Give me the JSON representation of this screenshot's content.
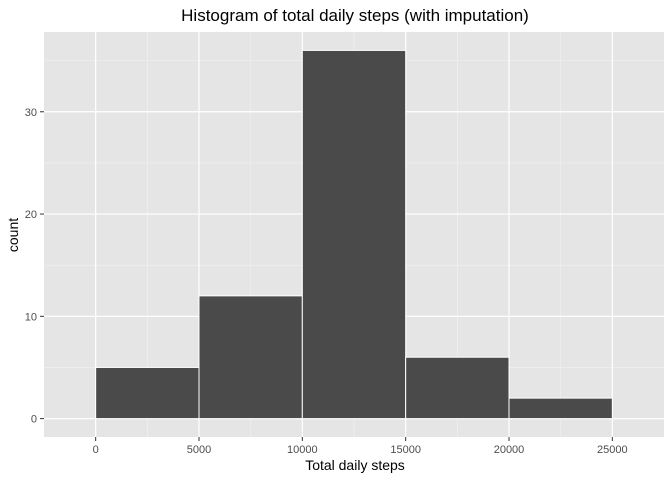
{
  "chart_data": {
    "type": "bar",
    "title": "Histogram of total daily steps (with imputation)",
    "xlabel": "Total daily steps",
    "ylabel": "count",
    "bins": [
      {
        "start": 0,
        "end": 5000,
        "count": 5
      },
      {
        "start": 5000,
        "end": 10000,
        "count": 12
      },
      {
        "start": 10000,
        "end": 15000,
        "count": 36
      },
      {
        "start": 15000,
        "end": 20000,
        "count": 6
      },
      {
        "start": 20000,
        "end": 25000,
        "count": 2
      }
    ],
    "xlim": [
      -2500,
      27500
    ],
    "ylim": [
      -1.8,
      37.8
    ],
    "x_ticks": [
      0,
      5000,
      10000,
      15000,
      20000,
      25000
    ],
    "x_tick_labels": [
      "0",
      "5000",
      "10000",
      "15000",
      "20000",
      "25000"
    ],
    "y_ticks": [
      0,
      10,
      20,
      30
    ],
    "y_tick_labels": [
      "0",
      "10",
      "20",
      "30"
    ],
    "x_minor_ticks": [
      2500,
      7500,
      12500,
      17500,
      22500
    ],
    "y_minor_ticks": [
      5,
      15,
      25,
      35
    ],
    "grid": true,
    "colors": {
      "panel_background": "#e5e5e5",
      "grid_major": "#ffffff",
      "grid_minor": "#f2f2f2",
      "bar_fill": "#4a4a4a",
      "bar_outline": "#ffffff",
      "tick": "#333333"
    }
  }
}
